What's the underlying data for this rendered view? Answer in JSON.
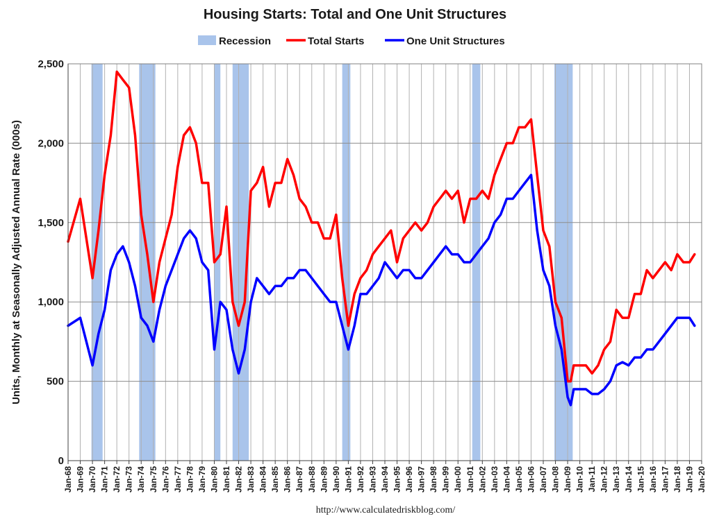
{
  "chart_data": {
    "type": "line",
    "title": "Housing Starts: Total and One Unit Structures",
    "ylabel": "Units, Monthly at Seasonally Adjusted Annual Rate (000s)",
    "ylim": [
      0,
      2500
    ],
    "xlim": [
      "Jan-68",
      "Jan-20"
    ],
    "yticks": [
      0,
      500,
      1000,
      1500,
      2000,
      2500
    ],
    "ytick_labels": [
      "0",
      "500",
      "1,000",
      "1,500",
      "2,000",
      "2,500"
    ],
    "xtick_labels": [
      "Jan-68",
      "Jan-69",
      "Jan-70",
      "Jan-71",
      "Jan-72",
      "Jan-73",
      "Jan-74",
      "Jan-75",
      "Jan-76",
      "Jan-77",
      "Jan-78",
      "Jan-79",
      "Jan-80",
      "Jan-81",
      "Jan-82",
      "Jan-83",
      "Jan-84",
      "Jan-85",
      "Jan-86",
      "Jan-87",
      "Jan-88",
      "Jan-89",
      "Jan-90",
      "Jan-91",
      "Jan-92",
      "Jan-93",
      "Jan-94",
      "Jan-95",
      "Jan-96",
      "Jan-97",
      "Jan-98",
      "Jan-99",
      "Jan-00",
      "Jan-01",
      "Jan-02",
      "Jan-03",
      "Jan-04",
      "Jan-05",
      "Jan-06",
      "Jan-07",
      "Jan-08",
      "Jan-09",
      "Jan-10",
      "Jan-11",
      "Jan-12",
      "Jan-13",
      "Jan-14",
      "Jan-15",
      "Jan-16",
      "Jan-17",
      "Jan-18",
      "Jan-19",
      "Jan-20"
    ],
    "grid": true,
    "legend_position": "top-center",
    "legend": [
      {
        "name": "Recession",
        "color": "#a9c4eb",
        "kind": "band"
      },
      {
        "name": "Total Starts",
        "color": "#ff0000",
        "kind": "line"
      },
      {
        "name": "One Unit Structures",
        "color": "#0000ff",
        "kind": "line"
      }
    ],
    "recessions": [
      {
        "start": "Dec-69",
        "end": "Nov-70"
      },
      {
        "start": "Nov-73",
        "end": "Mar-75"
      },
      {
        "start": "Jan-80",
        "end": "Jul-80"
      },
      {
        "start": "Jul-81",
        "end": "Nov-82"
      },
      {
        "start": "Jul-90",
        "end": "Mar-91"
      },
      {
        "start": "Mar-01",
        "end": "Nov-01"
      },
      {
        "start": "Dec-07",
        "end": "Jun-09"
      }
    ],
    "series": [
      {
        "name": "Total Starts",
        "color": "#ff0000",
        "x": [
          "Jan-68",
          "Jan-69",
          "Jan-70",
          "Jul-70",
          "Jan-71",
          "Jul-71",
          "Jan-72",
          "Jul-72",
          "Jan-73",
          "Jul-73",
          "Jan-74",
          "Jul-74",
          "Jan-75",
          "Jul-75",
          "Jan-76",
          "Jul-76",
          "Jan-77",
          "Jul-77",
          "Jan-78",
          "Jul-78",
          "Jan-79",
          "Jul-79",
          "Jan-80",
          "Jul-80",
          "Jan-81",
          "Jul-81",
          "Jan-82",
          "Jul-82",
          "Jan-83",
          "Jul-83",
          "Jan-84",
          "Jul-84",
          "Jan-85",
          "Jul-85",
          "Jan-86",
          "Jul-86",
          "Jan-87",
          "Jul-87",
          "Jan-88",
          "Jul-88",
          "Jan-89",
          "Jul-89",
          "Jan-90",
          "Jul-90",
          "Jan-91",
          "Jul-91",
          "Jan-92",
          "Jul-92",
          "Jan-93",
          "Jul-93",
          "Jan-94",
          "Jul-94",
          "Jan-95",
          "Jul-95",
          "Jan-96",
          "Jul-96",
          "Jan-97",
          "Jul-97",
          "Jan-98",
          "Jul-98",
          "Jan-99",
          "Jul-99",
          "Jan-00",
          "Jul-00",
          "Jan-01",
          "Jul-01",
          "Jan-02",
          "Jul-02",
          "Jan-03",
          "Jul-03",
          "Jan-04",
          "Jul-04",
          "Jan-05",
          "Jul-05",
          "Jan-06",
          "Jul-06",
          "Jan-07",
          "Jul-07",
          "Jan-08",
          "Jul-08",
          "Jan-09",
          "Apr-09",
          "Jul-09",
          "Jan-10",
          "Jul-10",
          "Jan-11",
          "Jul-11",
          "Jan-12",
          "Jul-12",
          "Jan-13",
          "Jul-13",
          "Jan-14",
          "Jul-14",
          "Jan-15",
          "Jul-15",
          "Jan-16",
          "Jul-16",
          "Jan-17",
          "Jul-17",
          "Jan-18",
          "Jul-18",
          "Jan-19",
          "Jun-19"
        ],
        "values": [
          1380,
          1650,
          1150,
          1450,
          1800,
          2050,
          2450,
          2400,
          2350,
          2050,
          1550,
          1300,
          1000,
          1250,
          1400,
          1550,
          1850,
          2050,
          2100,
          2000,
          1750,
          1750,
          1250,
          1300,
          1600,
          1000,
          850,
          1000,
          1700,
          1750,
          1850,
          1600,
          1750,
          1750,
          1900,
          1800,
          1650,
          1600,
          1500,
          1500,
          1400,
          1400,
          1550,
          1150,
          850,
          1050,
          1150,
          1200,
          1300,
          1350,
          1400,
          1450,
          1250,
          1400,
          1450,
          1500,
          1450,
          1500,
          1600,
          1650,
          1700,
          1650,
          1700,
          1500,
          1650,
          1650,
          1700,
          1650,
          1800,
          1900,
          2000,
          2000,
          2100,
          2100,
          2150,
          1800,
          1450,
          1350,
          1000,
          900,
          500,
          500,
          600,
          600,
          600,
          550,
          600,
          700,
          750,
          950,
          900,
          900,
          1050,
          1050,
          1200,
          1150,
          1200,
          1250,
          1200,
          1300,
          1250,
          1250,
          1300
        ],
        "marker": false
      },
      {
        "name": "One Unit Structures",
        "color": "#0000ff",
        "x": [
          "Jan-68",
          "Jan-69",
          "Jan-70",
          "Jul-70",
          "Jan-71",
          "Jul-71",
          "Jan-72",
          "Jul-72",
          "Jan-73",
          "Jul-73",
          "Jan-74",
          "Jul-74",
          "Jan-75",
          "Jul-75",
          "Jan-76",
          "Jul-76",
          "Jan-77",
          "Jul-77",
          "Jan-78",
          "Jul-78",
          "Jan-79",
          "Jul-79",
          "Jan-80",
          "Jul-80",
          "Jan-81",
          "Jul-81",
          "Jan-82",
          "Jul-82",
          "Jan-83",
          "Jul-83",
          "Jan-84",
          "Jul-84",
          "Jan-85",
          "Jul-85",
          "Jan-86",
          "Jul-86",
          "Jan-87",
          "Jul-87",
          "Jan-88",
          "Jul-88",
          "Jan-89",
          "Jul-89",
          "Jan-90",
          "Jul-90",
          "Jan-91",
          "Jul-91",
          "Jan-92",
          "Jul-92",
          "Jan-93",
          "Jul-93",
          "Jan-94",
          "Jul-94",
          "Jan-95",
          "Jul-95",
          "Jan-96",
          "Jul-96",
          "Jan-97",
          "Jul-97",
          "Jan-98",
          "Jul-98",
          "Jan-99",
          "Jul-99",
          "Jan-00",
          "Jul-00",
          "Jan-01",
          "Jul-01",
          "Jan-02",
          "Jul-02",
          "Jan-03",
          "Jul-03",
          "Jan-04",
          "Jul-04",
          "Jan-05",
          "Jul-05",
          "Jan-06",
          "Jul-06",
          "Jan-07",
          "Jul-07",
          "Jan-08",
          "Jul-08",
          "Jan-09",
          "Apr-09",
          "Jul-09",
          "Jan-10",
          "Jul-10",
          "Jan-11",
          "Jul-11",
          "Jan-12",
          "Jul-12",
          "Jan-13",
          "Jul-13",
          "Jan-14",
          "Jul-14",
          "Jan-15",
          "Jul-15",
          "Jan-16",
          "Jul-16",
          "Jan-17",
          "Jul-17",
          "Jan-18",
          "Jul-18",
          "Jan-19",
          "Jun-19"
        ],
        "values": [
          850,
          900,
          600,
          800,
          950,
          1200,
          1300,
          1350,
          1250,
          1100,
          900,
          850,
          750,
          950,
          1100,
          1200,
          1300,
          1400,
          1450,
          1400,
          1250,
          1200,
          700,
          1000,
          950,
          700,
          550,
          700,
          1000,
          1150,
          1100,
          1050,
          1100,
          1100,
          1150,
          1150,
          1200,
          1200,
          1150,
          1100,
          1050,
          1000,
          1000,
          850,
          700,
          850,
          1050,
          1050,
          1100,
          1150,
          1250,
          1200,
          1150,
          1200,
          1200,
          1150,
          1150,
          1200,
          1250,
          1300,
          1350,
          1300,
          1300,
          1250,
          1250,
          1300,
          1350,
          1400,
          1500,
          1550,
          1650,
          1650,
          1700,
          1750,
          1800,
          1450,
          1200,
          1100,
          850,
          700,
          400,
          350,
          450,
          450,
          450,
          420,
          420,
          450,
          500,
          600,
          620,
          600,
          650,
          650,
          700,
          700,
          750,
          800,
          850,
          900,
          900,
          900,
          850
        ],
        "marker": false
      }
    ],
    "source": "http://www.calculatedriskblog.com/"
  }
}
